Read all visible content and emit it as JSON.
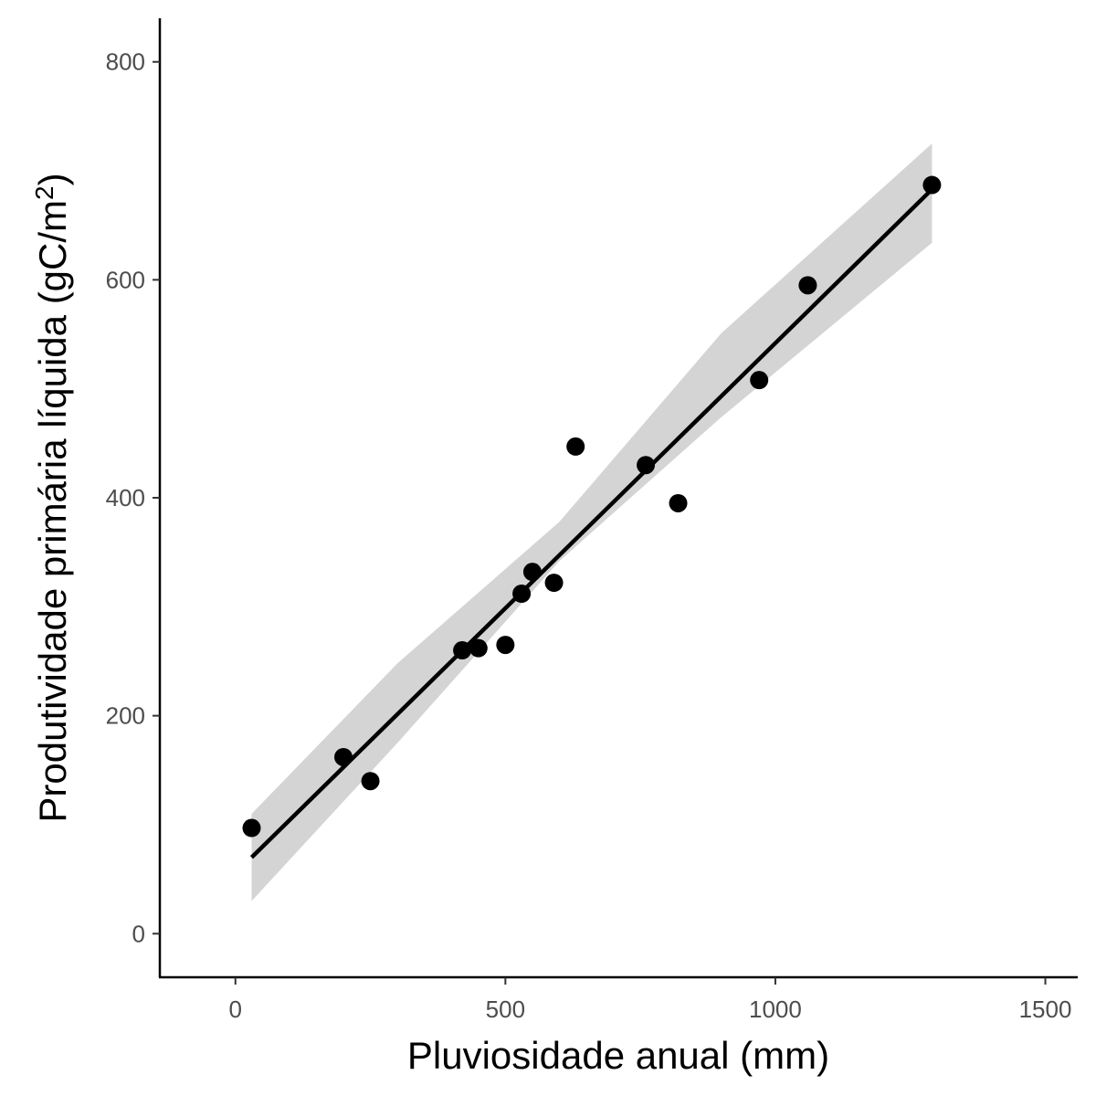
{
  "chart_data": {
    "type": "scatter",
    "title": "",
    "xlabel": "Pluviosidade anual (mm)",
    "ylabel_main": "Produtividade primária líquida (gC/m",
    "ylabel_sup": "2",
    "ylabel_close": ")",
    "xlim": [
      -140,
      1560
    ],
    "ylim": [
      -40,
      840
    ],
    "x_ticks": [
      0,
      500,
      1000,
      1500
    ],
    "x_tick_labels": [
      "0",
      "500",
      "1000",
      "1500"
    ],
    "y_ticks": [
      0,
      200,
      400,
      600,
      800
    ],
    "y_tick_labels": [
      "0",
      "200",
      "400",
      "600",
      "800"
    ],
    "grid": false,
    "points": [
      {
        "x": 30,
        "y": 97
      },
      {
        "x": 200,
        "y": 162
      },
      {
        "x": 250,
        "y": 140
      },
      {
        "x": 420,
        "y": 260
      },
      {
        "x": 450,
        "y": 262
      },
      {
        "x": 500,
        "y": 265
      },
      {
        "x": 530,
        "y": 312
      },
      {
        "x": 550,
        "y": 332
      },
      {
        "x": 590,
        "y": 322
      },
      {
        "x": 630,
        "y": 447
      },
      {
        "x": 760,
        "y": 430
      },
      {
        "x": 820,
        "y": 395
      },
      {
        "x": 970,
        "y": 508
      },
      {
        "x": 1060,
        "y": 595
      },
      {
        "x": 1290,
        "y": 687
      }
    ],
    "fit_line": {
      "x": [
        30,
        1290
      ],
      "y": [
        70,
        683
      ]
    },
    "confidence_band": {
      "x": [
        30,
        300,
        600,
        900,
        1290
      ],
      "lower": [
        30,
        175,
        342,
        474,
        634
      ],
      "upper": [
        110,
        248,
        378,
        551,
        725
      ]
    },
    "colors": {
      "points": "#000000",
      "line": "#000000",
      "band": "#d4d4d4"
    }
  }
}
